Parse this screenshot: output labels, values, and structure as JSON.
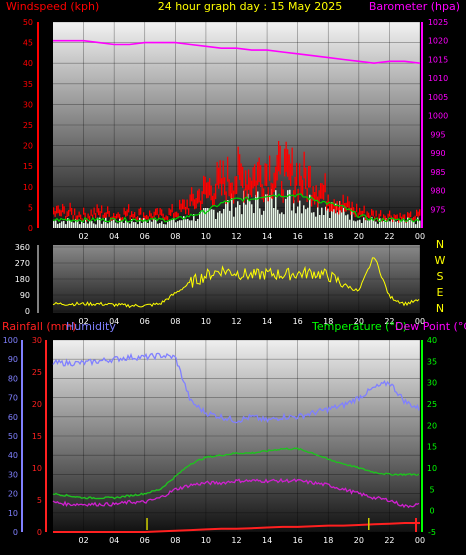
{
  "header": {
    "title": "24 hour graph day : 15 May 2025",
    "left_label": "Windspeed (kph)",
    "right_label": "Barometer (hpa)"
  },
  "colors": {
    "wind": "#ff0000",
    "gust_avg": "#00d000",
    "gust_white": "#e6f5e6",
    "baro": "#ff00ff",
    "direction": "#ffff00",
    "humidity": "#8080ff",
    "temperature": "#20c020",
    "dewpoint": "#d020d0",
    "rain": "#ff2020",
    "rain_bar": "#d0d000",
    "left_axis": "#ff0000",
    "right_axis_top": "#ff00ff",
    "temp_axis": "#00ff00",
    "hum_axis": "#8080ff",
    "text": "#ffffff",
    "title": "#ffff00"
  },
  "x_ticks": [
    "02",
    "04",
    "06",
    "08",
    "10",
    "12",
    "14",
    "16",
    "18",
    "20",
    "22",
    "00"
  ],
  "chart_data": [
    {
      "type": "line",
      "title": "24 hour graph day : 15 May 2025",
      "ylabel": "Windspeed (kph)",
      "y2label": "Barometer (hpa)",
      "x": [
        0,
        1,
        2,
        3,
        4,
        5,
        6,
        7,
        8,
        9,
        10,
        11,
        12,
        13,
        14,
        15,
        16,
        17,
        18,
        19,
        20,
        21,
        22,
        23,
        24
      ],
      "ylim": [
        0,
        50
      ],
      "y_ticks": [
        0,
        5,
        10,
        15,
        20,
        25,
        30,
        35,
        40,
        45,
        50
      ],
      "y2lim": [
        970,
        1025
      ],
      "y2_ticks": [
        975,
        980,
        985,
        990,
        995,
        1000,
        1005,
        1010,
        1015,
        1020,
        1025
      ],
      "grid": true,
      "series": [
        {
          "name": "Barometer (hpa)",
          "axis": "right",
          "values": [
            1020,
            1020,
            1020,
            1019.5,
            1019,
            1019,
            1019.5,
            1019.5,
            1019.5,
            1019,
            1018.5,
            1018,
            1018,
            1017.5,
            1017.5,
            1017,
            1016.5,
            1016,
            1015.5,
            1015,
            1014.5,
            1014,
            1014.5,
            1014.5,
            1014
          ]
        },
        {
          "name": "Windspeed (kph)",
          "axis": "left",
          "kind": "bars",
          "values": [
            5,
            5,
            4,
            5,
            4,
            5,
            4,
            4,
            5,
            8,
            12,
            14,
            16,
            16,
            18,
            17,
            16,
            14,
            10,
            7,
            5,
            4,
            4,
            3,
            4
          ]
        },
        {
          "name": "",
          "axis": "left",
          "values": [
            2,
            2,
            2,
            2,
            2,
            2,
            2,
            2,
            2,
            3,
            4,
            6,
            7,
            7,
            8,
            8,
            8,
            7,
            6,
            5,
            3,
            2,
            2,
            2,
            2
          ]
        }
      ]
    },
    {
      "type": "scatter",
      "ylabel": "Wind direction",
      "x": [
        0,
        1,
        2,
        3,
        4,
        5,
        6,
        7,
        8,
        9,
        10,
        11,
        12,
        13,
        14,
        15,
        16,
        17,
        18,
        19,
        20,
        21,
        22,
        23,
        24
      ],
      "ylim": [
        0,
        360
      ],
      "y_ticks": [
        0,
        90,
        180,
        270,
        360
      ],
      "compass": [
        "N",
        "W",
        "S",
        "E",
        "N"
      ],
      "grid": true,
      "series": [
        {
          "name": "Wind direction",
          "values": [
            40,
            40,
            40,
            40,
            35,
            30,
            30,
            40,
            100,
            160,
            200,
            230,
            215,
            200,
            210,
            205,
            210,
            215,
            200,
            150,
            110,
            310,
            80,
            40,
            60
          ]
        }
      ]
    },
    {
      "type": "line",
      "ylabel": "Rainfall (mm)",
      "y1label": "Humidity",
      "y2label": "Temperature (°C)",
      "y3label": "Dew Point (°C)",
      "x": [
        0,
        1,
        2,
        3,
        4,
        5,
        6,
        7,
        8,
        9,
        10,
        11,
        12,
        13,
        14,
        15,
        16,
        17,
        18,
        19,
        20,
        21,
        22,
        23,
        24
      ],
      "ylim": [
        0,
        30
      ],
      "y_ticks": [
        0,
        5,
        10,
        15,
        20,
        25,
        30
      ],
      "humidity_lim": [
        0,
        100
      ],
      "humidity_ticks": [
        0,
        10,
        20,
        30,
        40,
        50,
        60,
        70,
        80,
        90,
        100
      ],
      "temp_lim": [
        -5,
        40
      ],
      "temp_ticks": [
        -5,
        0,
        5,
        10,
        15,
        20,
        25,
        30,
        35,
        40
      ],
      "grid": true,
      "series": [
        {
          "name": "Humidity",
          "axis": "humidity",
          "values": [
            88,
            88,
            88,
            89,
            90,
            91,
            91,
            92,
            91,
            68,
            62,
            60,
            58,
            60,
            58,
            60,
            60,
            62,
            64,
            66,
            70,
            75,
            78,
            68,
            64
          ]
        },
        {
          "name": "Temperature (°C)",
          "axis": "temp",
          "values": [
            4,
            3.5,
            3,
            3,
            3,
            3.5,
            4,
            5,
            8,
            11,
            12.5,
            13,
            13.5,
            13.5,
            14,
            14.5,
            14.5,
            13.5,
            12,
            11,
            10,
            9,
            8.5,
            8.5,
            8.5
          ]
        },
        {
          "name": "Dew Point (°C)",
          "axis": "temp",
          "values": [
            2,
            1.5,
            1.5,
            1.5,
            1.5,
            2,
            2,
            3,
            5,
            6,
            6.5,
            6.5,
            7,
            7,
            7,
            7,
            7,
            6.5,
            6,
            5,
            4,
            3,
            2.5,
            1,
            1.5
          ]
        },
        {
          "name": "Rainfall (mm)",
          "axis": "left",
          "values": [
            0,
            0,
            0,
            0,
            0,
            0,
            0,
            0.1,
            0.2,
            0.3,
            0.4,
            0.5,
            0.5,
            0.6,
            0.7,
            0.8,
            0.8,
            0.9,
            1.0,
            1.0,
            1.1,
            1.2,
            1.3,
            1.4,
            1.4
          ]
        }
      ]
    }
  ],
  "panel3_labels": {
    "rain": "Rainfall (mm)",
    "humidity": "Humidity",
    "temperature": "Temperature (°C)",
    "dewpoint": "Dew Point (°C)"
  }
}
